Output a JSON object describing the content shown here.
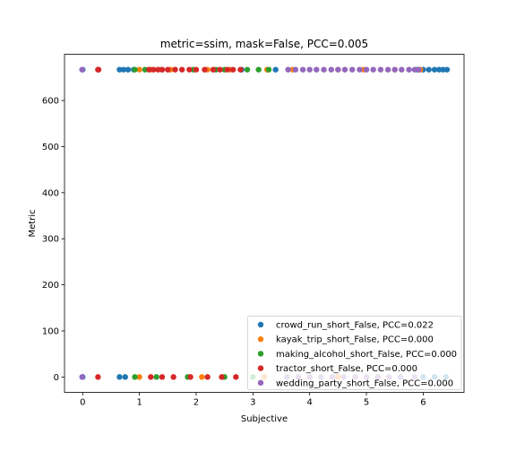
{
  "chart_data": {
    "type": "scatter",
    "title": "metric=ssim, mask=False, PCC=0.005",
    "xlabel": "Subjective",
    "ylabel": "Metric",
    "xlim": [
      -0.32,
      6.72
    ],
    "ylim": [
      -33.4,
      700.4
    ],
    "xticks": [
      0,
      1,
      2,
      3,
      4,
      5,
      6
    ],
    "yticks": [
      0,
      100,
      200,
      300,
      400,
      500,
      600
    ],
    "grid": false,
    "legend_position": "lower-right",
    "series": [
      {
        "name": "crowd_run_short_False, PCC=0.022",
        "color": "#1f77b4",
        "x": [
          0,
          0.65,
          0.72,
          0.8,
          0.9,
          2.8,
          3.4,
          5.9,
          6.0,
          6.1,
          6.2,
          6.28,
          6.35,
          6.42,
          0,
          0.65,
          0.75,
          6.0,
          6.2,
          6.4
        ],
        "y": [
          667,
          667,
          667,
          667,
          667,
          667,
          667,
          667,
          667,
          667,
          667,
          667,
          667,
          667,
          0,
          0,
          0,
          0,
          0,
          0
        ]
      },
      {
        "name": "kayak_trip_short_False, PCC=0.000",
        "color": "#ff7f0e",
        "x": [
          1.0,
          1.2,
          1.55,
          2.2,
          2.6,
          3.25,
          3.7,
          4.5,
          4.95,
          5.5,
          5.95,
          1.0,
          2.1,
          3.2,
          4.5,
          5.2
        ],
        "y": [
          667,
          667,
          667,
          667,
          667,
          667,
          667,
          667,
          667,
          667,
          667,
          0,
          0,
          0,
          0,
          0
        ]
      },
      {
        "name": "making_alcohol_short_False, PCC=0.000",
        "color": "#2ca02c",
        "x": [
          0.92,
          1.1,
          1.4,
          1.95,
          2.35,
          2.5,
          2.9,
          3.1,
          3.28,
          0.92,
          1.3,
          1.85,
          2.5,
          3.0
        ],
        "y": [
          667,
          667,
          667,
          667,
          667,
          667,
          667,
          667,
          667,
          0,
          0,
          0,
          0,
          0
        ]
      },
      {
        "name": "tractor_short_False, PCC=0.000",
        "color": "#d62728",
        "x": [
          0.27,
          0.28,
          1.17,
          1.25,
          1.33,
          1.4,
          1.5,
          1.63,
          1.75,
          1.88,
          2.0,
          2.15,
          2.3,
          2.42,
          2.55,
          2.65,
          2.78,
          0.27,
          1.2,
          1.4,
          1.6,
          1.9,
          2.2,
          2.45,
          2.7
        ],
        "y": [
          667,
          667,
          667,
          667,
          667,
          667,
          667,
          667,
          667,
          667,
          667,
          667,
          667,
          667,
          667,
          667,
          667,
          0,
          0,
          0,
          0,
          0,
          0,
          0,
          0
        ]
      },
      {
        "name": "wedding_party_short_False, PCC=0.000",
        "color": "#9467bd",
        "x": [
          -0.01,
          3.62,
          3.75,
          3.88,
          4.0,
          4.12,
          4.25,
          4.38,
          4.5,
          4.62,
          4.75,
          4.88,
          5.0,
          5.12,
          5.25,
          5.38,
          5.5,
          5.62,
          5.75,
          5.85,
          5.92,
          -0.01,
          3.6,
          3.8,
          4.0,
          4.2,
          4.4,
          4.6,
          4.8,
          5.0,
          5.2,
          5.4,
          5.6,
          5.85
        ],
        "y": [
          667,
          667,
          667,
          667,
          667,
          667,
          667,
          667,
          667,
          667,
          667,
          667,
          667,
          667,
          667,
          667,
          667,
          667,
          667,
          667,
          667,
          0,
          0,
          0,
          0,
          0,
          0,
          0,
          0,
          0,
          0,
          0,
          0,
          0
        ]
      }
    ]
  }
}
